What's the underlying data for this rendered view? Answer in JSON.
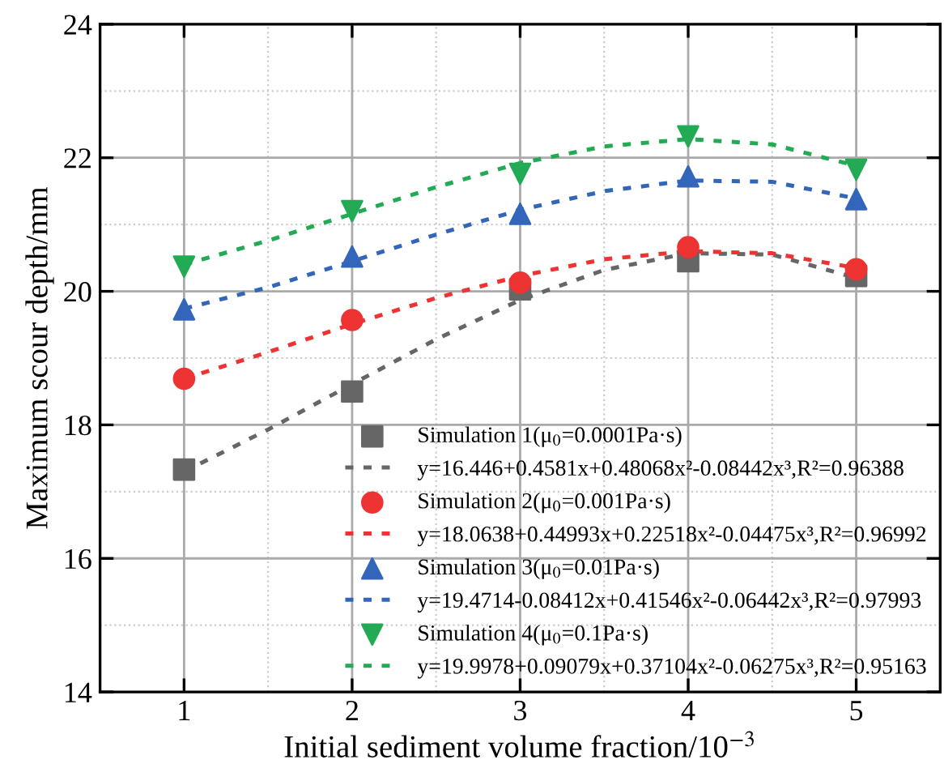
{
  "chart_data": {
    "type": "scatter",
    "xlabel": "Initial sediment volume fraction/10$^{−3}$",
    "ylabel": "Maximum scour depth/mm",
    "x": [
      1,
      2,
      3,
      4,
      5
    ],
    "xlim": [
      0.5,
      5.5
    ],
    "xticks": [
      1,
      2,
      3,
      4,
      5
    ],
    "ylim": [
      14,
      24
    ],
    "yticks": [
      14,
      16,
      18,
      20,
      22,
      24
    ],
    "grid": true,
    "legend": "bottom right",
    "series": [
      {
        "name": "Simulation 1(μ$_{0}$=0.0001Pa·s)",
        "marker": "square",
        "color": "#666666",
        "values": [
          17.33,
          18.5,
          20.03,
          20.45,
          20.23
        ]
      },
      {
        "name": "y=16.446+0.4581x+0.48068x²-0.08442x³,R²=0.96388",
        "type": "line",
        "line_style": "dotted",
        "marker": "none",
        "color": "#666666",
        "x": [
          1,
          1.5,
          2,
          2.5,
          3,
          3.5,
          4,
          4.5,
          5
        ],
        "values": [
          17.3,
          17.93,
          18.61,
          19.28,
          19.87,
          20.32,
          20.57,
          20.55,
          20.2
        ]
      },
      {
        "name": "Simulation 2(μ$_{0}$=0.001Pa·s)",
        "marker": "circle",
        "color": "#ee3333",
        "values": [
          18.69,
          19.57,
          20.13,
          20.66,
          20.33
        ]
      },
      {
        "name": "y=18.0638+0.44993x+0.22518x²-0.04475x³,R²=0.96992",
        "type": "line",
        "line_style": "dotted",
        "marker": "none",
        "color": "#ee3333",
        "x": [
          1,
          1.5,
          2,
          2.5,
          3,
          3.5,
          4,
          4.5,
          5
        ],
        "values": [
          18.69,
          19.09,
          19.51,
          19.9,
          20.23,
          20.48,
          20.6,
          20.57,
          20.35
        ]
      },
      {
        "name": "Simulation 3(μ$_{0}$=0.01Pa·s)",
        "marker": "triangle",
        "color": "#3366bb",
        "values": [
          19.73,
          20.52,
          21.16,
          21.72,
          21.38
        ]
      },
      {
        "name": "y=19.4714-0.08412x+0.41546x²-0.06442x³,R²=0.97993",
        "type": "line",
        "line_style": "dotted",
        "marker": "none",
        "color": "#3366bb",
        "x": [
          1,
          1.5,
          2,
          2.5,
          3,
          3.5,
          4,
          4.5,
          5
        ],
        "values": [
          19.74,
          20.06,
          20.45,
          20.85,
          21.22,
          21.5,
          21.66,
          21.64,
          21.39
        ]
      },
      {
        "name": "Simulation 4(μ$_{0}$=0.1Pa·s)",
        "marker": "triangle_down",
        "color": "#22aa55",
        "values": [
          20.37,
          21.2,
          21.76,
          22.32,
          21.82
        ]
      },
      {
        "name": "y=19.9978+0.09079x+0.37104x²-0.06275x³,R²=0.95163",
        "type": "line",
        "line_style": "dotted",
        "marker": "none",
        "color": "#22aa55",
        "x": [
          1,
          1.5,
          2,
          2.5,
          3,
          3.5,
          4,
          4.5,
          5
        ],
        "values": [
          20.4,
          20.76,
          21.16,
          21.56,
          21.92,
          22.17,
          22.28,
          22.2,
          21.88
        ]
      }
    ]
  }
}
